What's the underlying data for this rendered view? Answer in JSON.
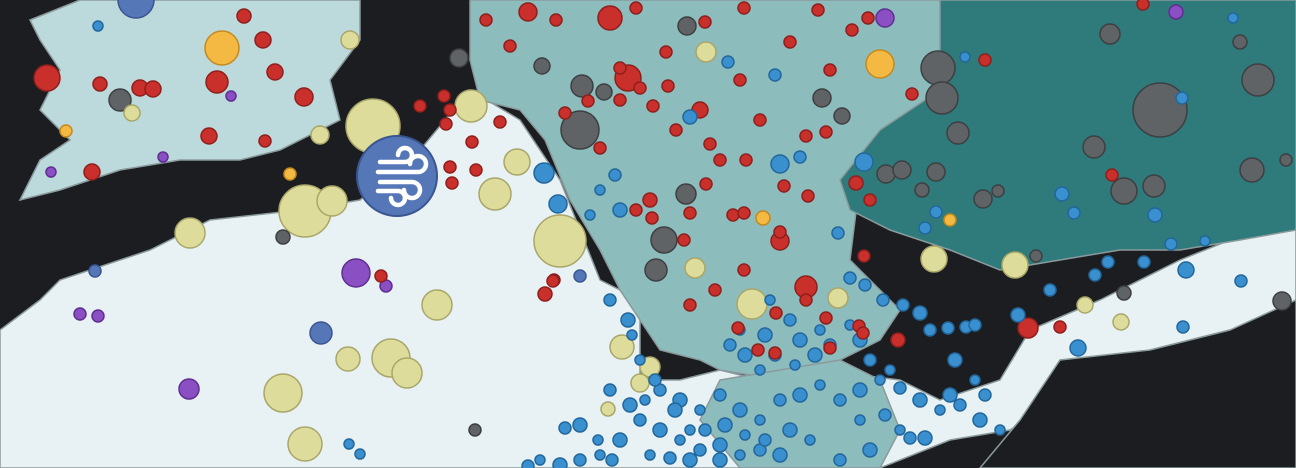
{
  "map": {
    "colors": {
      "sea": "#1b1d20",
      "land_west": "#e8f1f3",
      "land_uk": "#bcd9db",
      "land_central": "#8dbcbc",
      "land_east": "#2f7a7b",
      "border": "#8a9a9c"
    },
    "marker_types": {
      "gas": {
        "fill": "#c9302c",
        "stroke": "#8e1f1c"
      },
      "coal": {
        "fill": "#606366",
        "stroke": "#3d3f41"
      },
      "hydro": {
        "fill": "#3a8fcf",
        "stroke": "#22679b"
      },
      "solar": {
        "fill": "#dedc9a",
        "stroke": "#a8a66a"
      },
      "nuclear": {
        "fill": "#8b4fc4",
        "stroke": "#5f2e90"
      },
      "biomass": {
        "fill": "#f4b942",
        "stroke": "#c48a1e"
      },
      "wind": {
        "fill": "#5577b8",
        "stroke": "#3a5690"
      }
    },
    "highlighted_marker": {
      "type": "wind",
      "icon": "wind-icon"
    }
  }
}
